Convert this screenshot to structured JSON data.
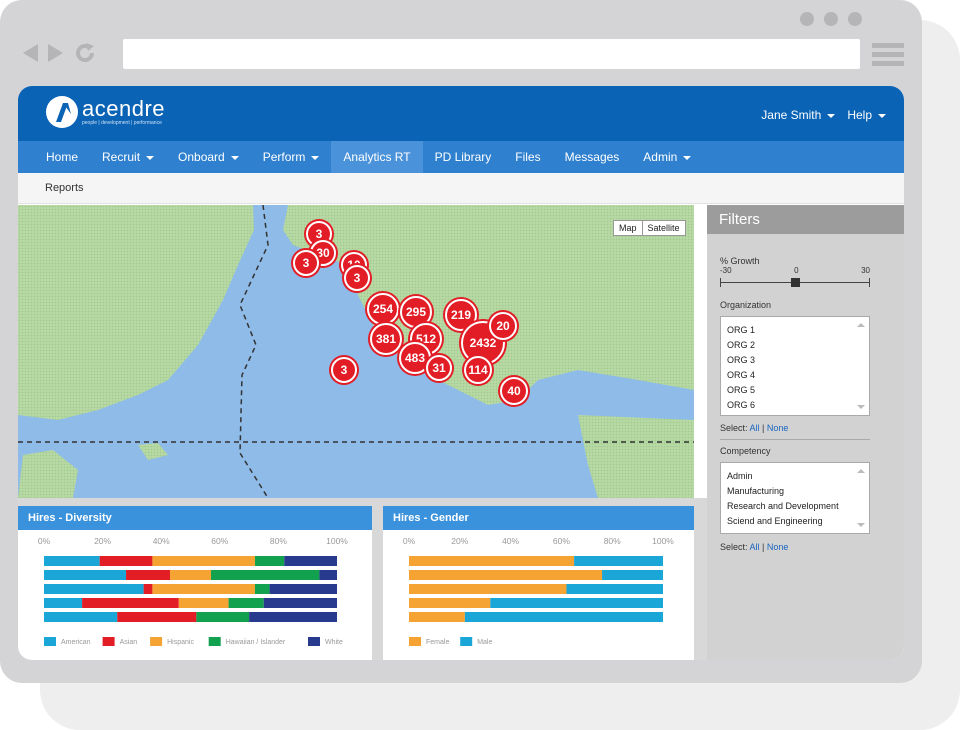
{
  "app": {
    "logo_name": "acendre",
    "logo_tagline": "people | development | performance",
    "user": "Jane Smith",
    "help": "Help"
  },
  "nav": {
    "items": [
      {
        "label": "Home",
        "dropdown": false,
        "active": false
      },
      {
        "label": "Recruit",
        "dropdown": true,
        "active": false
      },
      {
        "label": "Onboard",
        "dropdown": true,
        "active": false
      },
      {
        "label": "Perform",
        "dropdown": true,
        "active": false
      },
      {
        "label": "Analytics RT",
        "dropdown": false,
        "active": true
      },
      {
        "label": "PD Library",
        "dropdown": false,
        "active": false
      },
      {
        "label": "Files",
        "dropdown": false,
        "active": false
      },
      {
        "label": "Messages",
        "dropdown": false,
        "active": false
      },
      {
        "label": "Admin",
        "dropdown": true,
        "active": false
      }
    ]
  },
  "breadcrumb": "Reports",
  "map": {
    "toggle": [
      "Map",
      "Satellite"
    ],
    "clusters": [
      "3",
      "30",
      "3",
      "10",
      "3",
      "254",
      "295",
      "219",
      "20",
      "381",
      "512",
      "2432",
      "483",
      "31",
      "114",
      "3",
      "40"
    ]
  },
  "filters": {
    "title": "Filters",
    "growth_label": "% Growth",
    "growth_ticks": [
      "-30",
      "0",
      "30"
    ],
    "growth_value": 0,
    "organization_label": "Organization",
    "organizations": [
      "ORG 1",
      "ORG 2",
      "ORG 3",
      "ORG 4",
      "ORG 5",
      "ORG 6"
    ],
    "competency_label": "Competency",
    "competencies": [
      "Admin",
      "Manufacturing",
      "Research and Development",
      "Sciend and Engineering"
    ],
    "select_prefix": "Select:",
    "select_all": "All",
    "select_none": "None"
  },
  "colors": {
    "American": "#1aa7d8",
    "Asian": "#e21d26",
    "Hispanic": "#f5a332",
    "Hawaiian": "#11a14f",
    "White": "#283a8e",
    "Female": "#f5a332",
    "Male": "#1aa7d8"
  },
  "chart_data": [
    {
      "type": "bar",
      "title": "Hires - Diversity",
      "orientation": "horizontal-stacked-percent",
      "x_ticks": [
        "0%",
        "20%",
        "40%",
        "60%",
        "80%",
        "100%"
      ],
      "xlim": [
        0,
        100
      ],
      "series": [
        {
          "name": "American",
          "values": [
            19,
            28,
            34,
            13,
            25
          ]
        },
        {
          "name": "Asian",
          "values": [
            18,
            15,
            3,
            33,
            27
          ]
        },
        {
          "name": "Hispanic",
          "values": [
            35,
            14,
            35,
            17,
            0
          ]
        },
        {
          "name": "Hawaiian / Islander",
          "values": [
            10,
            37,
            5,
            12,
            18
          ]
        },
        {
          "name": "White",
          "values": [
            18,
            6,
            23,
            25,
            30
          ]
        }
      ]
    },
    {
      "type": "bar",
      "title": "Hires - Gender",
      "orientation": "horizontal-stacked-percent",
      "x_ticks": [
        "0%",
        "20%",
        "40%",
        "60%",
        "80%",
        "100%"
      ],
      "xlim": [
        0,
        100
      ],
      "series": [
        {
          "name": "Female",
          "values": [
            65,
            76,
            62,
            32,
            22
          ]
        },
        {
          "name": "Male",
          "values": [
            35,
            24,
            38,
            68,
            78
          ]
        }
      ]
    }
  ]
}
